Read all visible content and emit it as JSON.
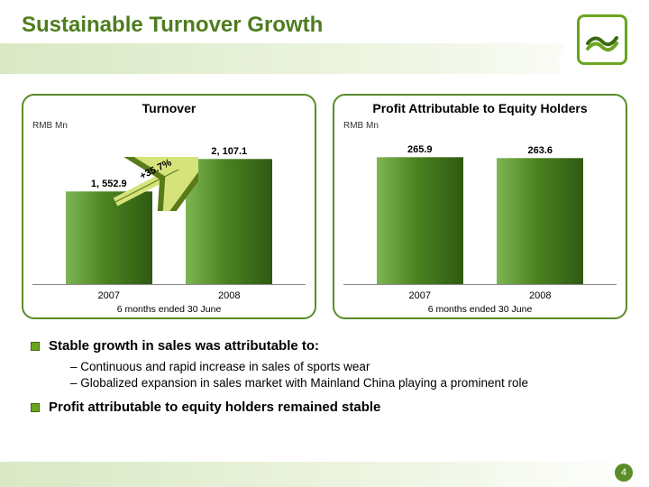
{
  "page": {
    "title": "Sustainable Turnover Growth",
    "page_number": "4"
  },
  "colors": {
    "brand_green_dark": "#4e7d1e",
    "brand_green": "#5a8c2a",
    "bar_grad_light": "#7fb655",
    "bar_grad_mid": "#4b8420",
    "bar_grad_dark": "#2f5a12",
    "band_light": "#d9e8c4",
    "band_lighter": "#eef5e2",
    "bullet_fill": "#6aa51f",
    "bullet_border": "#3d6a14"
  },
  "chart1": {
    "title": "Turnover",
    "unit": "RMB Mn",
    "growth_label": "+35.7%",
    "ylim_max": 2400,
    "bars": [
      {
        "year": "2007",
        "value": 1552.9,
        "value_label": "1, 552.9"
      },
      {
        "year": "2008",
        "value": 2107.1,
        "value_label": "2, 107.1"
      }
    ],
    "footer": "6 months ended 30 June"
  },
  "chart2": {
    "title": "Profit Attributable to Equity Holders",
    "unit": "RMB Mn",
    "ylim_max": 300,
    "bars": [
      {
        "year": "2007",
        "value": 265.9,
        "value_label": "265.9"
      },
      {
        "year": "2008",
        "value": 263.6,
        "value_label": "263.6"
      }
    ],
    "footer": "6 months ended 30 June"
  },
  "bullets": [
    {
      "text": "Stable growth in sales was attributable to:",
      "subs": [
        "Continuous and rapid increase in sales of sports wear",
        "Globalized expansion in sales market with Mainland China playing a prominent role"
      ]
    },
    {
      "text": "Profit attributable to equity holders remained stable",
      "subs": []
    }
  ]
}
